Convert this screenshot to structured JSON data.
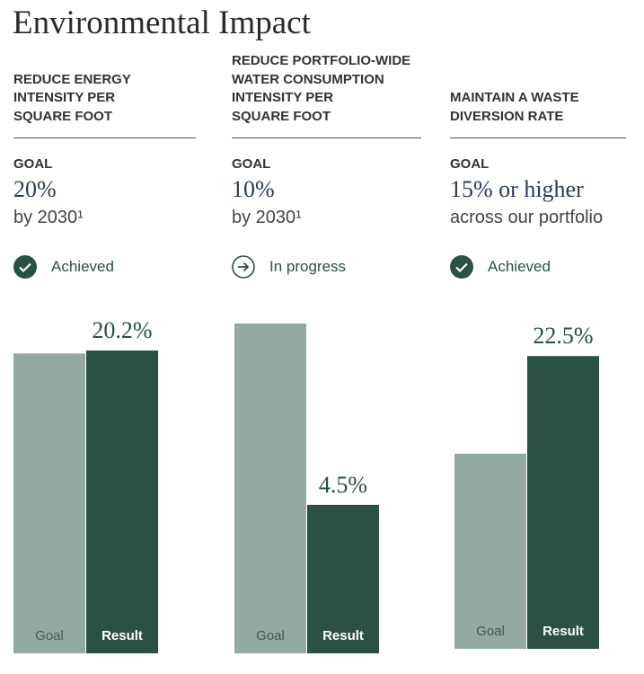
{
  "title": "Environmental Impact",
  "panels": [
    {
      "heading": [
        "REDUCE ENERGY",
        "INTENSITY PER",
        "SQUARE FOOT"
      ],
      "goal_label": "GOAL",
      "goal": "20%",
      "goal_detail": "by 2030¹",
      "status": "Achieved"
    },
    {
      "heading": [
        "REDUCE PORTFOLIO-WIDE",
        "WATER CONSUMPTION",
        "INTENSITY PER",
        "SQUARE FOOT"
      ],
      "goal_label": "GOAL",
      "goal": "10%",
      "goal_detail": "by 2030¹",
      "status": "In progress"
    },
    {
      "heading": [
        "MAINTAIN A WASTE",
        "DIVERSION RATE"
      ],
      "goal_label": "GOAL",
      "goal": "15% or higher",
      "goal_detail": "across our portfolio",
      "status": "Achieved"
    }
  ],
  "chart_data": [
    {
      "type": "bar",
      "categories": [
        "Goal",
        "Result"
      ],
      "values": [
        20,
        20.2
      ],
      "value_labels": [
        null,
        "20.2%"
      ],
      "colors": [
        "#93aaa1",
        "#2b5045"
      ],
      "ylim": [
        0,
        22
      ]
    },
    {
      "type": "bar",
      "categories": [
        "Goal",
        "Result"
      ],
      "values": [
        10,
        4.5
      ],
      "value_labels": [
        null,
        "4.5%"
      ],
      "colors": [
        "#93aaa1",
        "#2b5045"
      ],
      "ylim": [
        0,
        10
      ]
    },
    {
      "type": "bar",
      "categories": [
        "Goal",
        "Result"
      ],
      "values": [
        15,
        22.5
      ],
      "value_labels": [
        null,
        "22.5%"
      ],
      "colors": [
        "#93aaa1",
        "#2b5045"
      ],
      "ylim": [
        0,
        25
      ]
    }
  ]
}
